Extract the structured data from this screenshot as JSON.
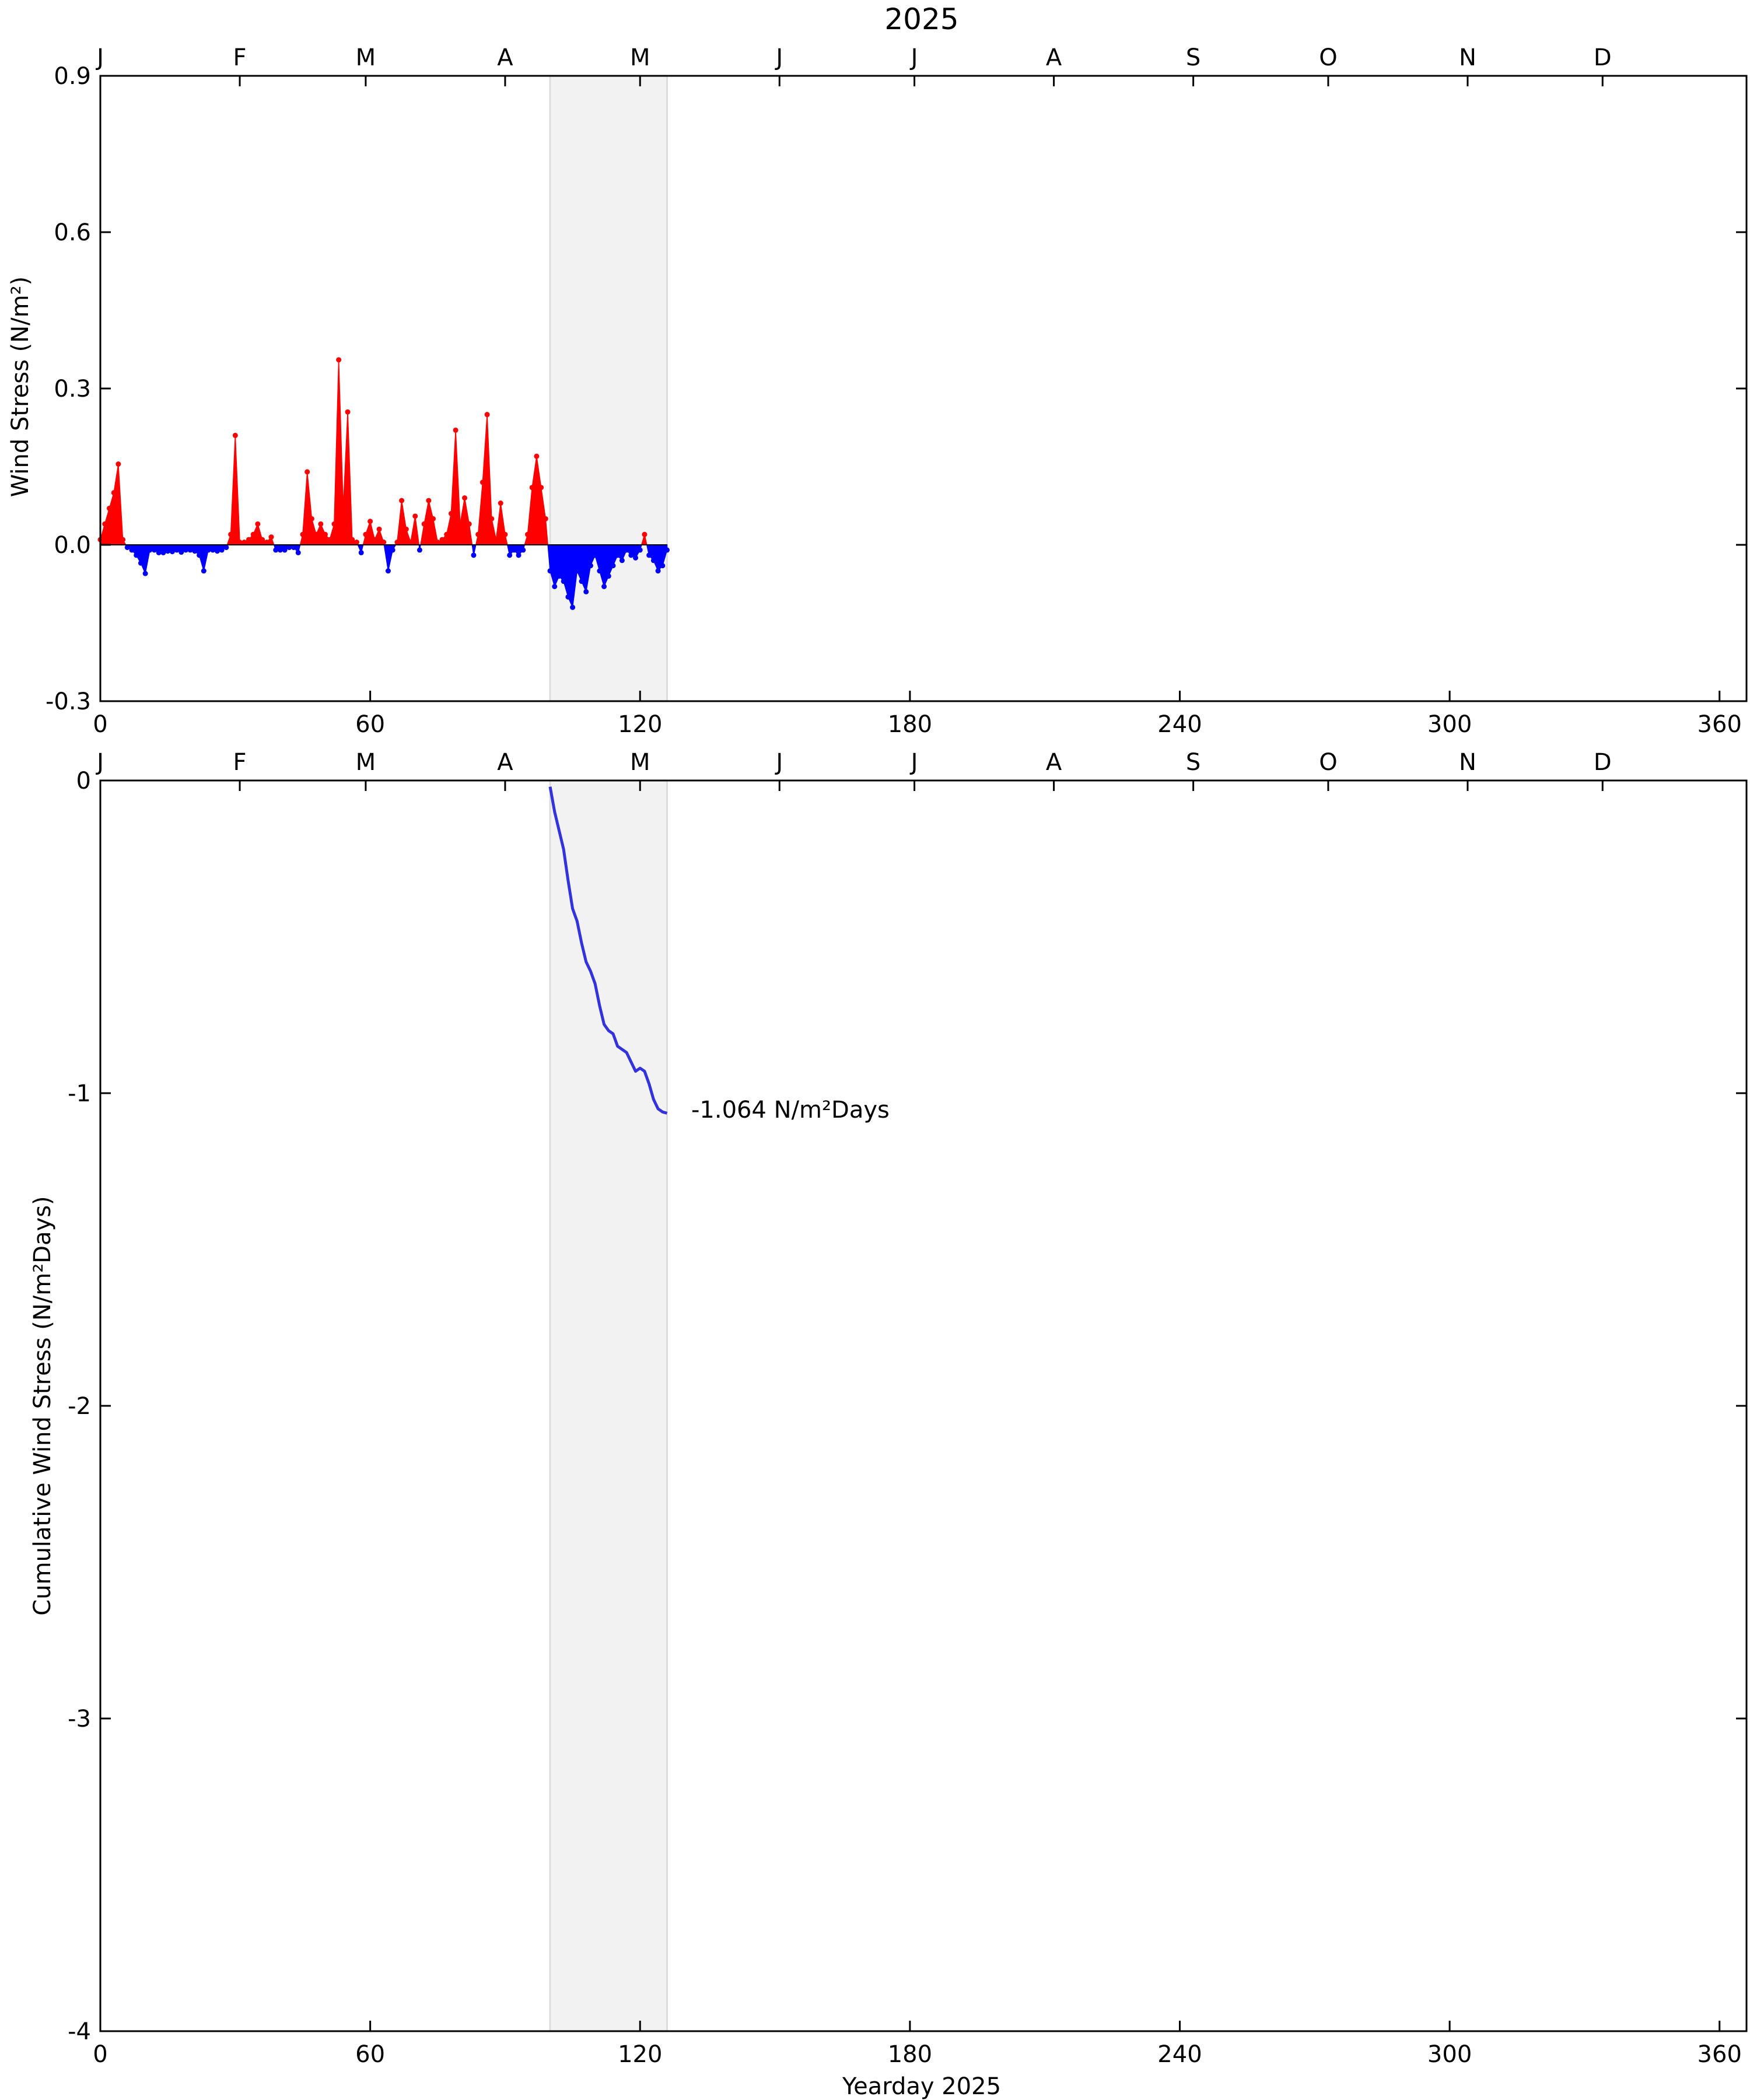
{
  "title": "2025",
  "chart_data": [
    {
      "type": "area",
      "panel": "top",
      "ylabel": "Wind Stress (N/m²)",
      "xlabel": "",
      "xlim": [
        0,
        366
      ],
      "ylim": [
        -0.3,
        0.9
      ],
      "xticks": [
        0,
        60,
        120,
        180,
        240,
        300,
        360
      ],
      "xtick_labels": [
        "0",
        "60",
        "120",
        "180",
        "240",
        "300",
        "360"
      ],
      "yticks": [
        -0.3,
        0.0,
        0.3,
        0.6,
        0.9
      ],
      "ytick_labels": [
        "-0.3",
        "0.0",
        "0.3",
        "0.6",
        "0.9"
      ],
      "months": [
        "J",
        "F",
        "M",
        "A",
        "M",
        "J",
        "J",
        "A",
        "S",
        "O",
        "N",
        "D"
      ],
      "month_days": [
        0,
        31,
        59,
        90,
        120,
        151,
        181,
        212,
        243,
        273,
        304,
        334
      ],
      "highlight_range": [
        100,
        126
      ],
      "positive_color": "#ff0000",
      "negative_color": "#0000ff",
      "highlight_color": "#f2f2f2",
      "grid": false,
      "series": [
        {
          "x": [
            0,
            1,
            2,
            3,
            4,
            5,
            6,
            7,
            8,
            9,
            10,
            11,
            12,
            13,
            14,
            15,
            16,
            17,
            18,
            19,
            20,
            21,
            22,
            23,
            24,
            25,
            26,
            27,
            28,
            29,
            30,
            31,
            32,
            33,
            34,
            35,
            36,
            37,
            38,
            39,
            40,
            41,
            42,
            43,
            44,
            45,
            46,
            47,
            48,
            49,
            50,
            51,
            52,
            53,
            54,
            55,
            56,
            57,
            58,
            59,
            60,
            61,
            62,
            63,
            64,
            65,
            66,
            67,
            68,
            69,
            70,
            71,
            72,
            73,
            74,
            75,
            76,
            77,
            78,
            79,
            80,
            81,
            82,
            83,
            84,
            85,
            86,
            87,
            88,
            89,
            90,
            91,
            92,
            93,
            94,
            95,
            96,
            97,
            98,
            99,
            100,
            101,
            102,
            103,
            104,
            105,
            106,
            107,
            108,
            109,
            110,
            111,
            112,
            113,
            114,
            115,
            116,
            117,
            118,
            119,
            120,
            121,
            122,
            123,
            124,
            125,
            126
          ],
          "values": [
            0.01,
            0.04,
            0.07,
            0.1,
            0.155,
            0.01,
            -0.005,
            -0.01,
            -0.02,
            -0.035,
            -0.055,
            -0.01,
            -0.01,
            -0.015,
            -0.015,
            -0.012,
            -0.013,
            -0.01,
            -0.014,
            -0.01,
            -0.01,
            -0.012,
            -0.02,
            -0.05,
            -0.01,
            -0.01,
            -0.012,
            -0.01,
            -0.005,
            0.02,
            0.21,
            0.005,
            0.005,
            0.01,
            0.02,
            0.04,
            0.01,
            0.005,
            0.015,
            -0.01,
            -0.01,
            -0.01,
            -0.005,
            -0.005,
            -0.015,
            0.02,
            0.14,
            0.05,
            0.02,
            0.04,
            0.02,
            0.01,
            0.04,
            0.355,
            0.07,
            0.255,
            0.01,
            0.005,
            -0.015,
            0.02,
            0.045,
            0.01,
            0.03,
            0.005,
            -0.05,
            -0.01,
            0.005,
            0.085,
            0.03,
            0.005,
            0.055,
            -0.01,
            0.04,
            0.085,
            0.05,
            0.005,
            0.01,
            0.02,
            0.06,
            0.22,
            0.04,
            0.09,
            0.04,
            -0.02,
            0.02,
            0.12,
            0.25,
            0.05,
            0.01,
            0.08,
            0.02,
            -0.02,
            -0.01,
            -0.02,
            -0.01,
            0.02,
            0.11,
            0.17,
            0.11,
            0.05,
            -0.05,
            -0.08,
            -0.06,
            -0.07,
            -0.1,
            -0.12,
            -0.05,
            -0.07,
            -0.09,
            -0.04,
            -0.02,
            -0.05,
            -0.08,
            -0.06,
            -0.04,
            -0.02,
            -0.03,
            -0.01,
            -0.02,
            -0.025,
            -0.01,
            0.02,
            -0.02,
            -0.03,
            -0.05,
            -0.04,
            -0.01
          ]
        }
      ]
    },
    {
      "type": "line",
      "panel": "bottom",
      "ylabel": "Cumulative Wind Stress (N/m²Days)",
      "xlabel": "Yearday 2025",
      "xlim": [
        0,
        366
      ],
      "ylim": [
        -4,
        0
      ],
      "xticks": [
        0,
        60,
        120,
        180,
        240,
        300,
        360
      ],
      "xtick_labels": [
        "0",
        "60",
        "120",
        "180",
        "240",
        "300",
        "360"
      ],
      "yticks": [
        -4,
        -3,
        -2,
        -1,
        0
      ],
      "ytick_labels": [
        "-4",
        "-3",
        "-2",
        "-1",
        "0"
      ],
      "months": [
        "J",
        "F",
        "M",
        "A",
        "M",
        "J",
        "J",
        "A",
        "S",
        "O",
        "N",
        "D"
      ],
      "month_days": [
        0,
        31,
        59,
        90,
        120,
        151,
        181,
        212,
        243,
        273,
        304,
        334
      ],
      "highlight_range": [
        100,
        126
      ],
      "line_color": "#3333dd",
      "highlight_color": "#f2f2f2",
      "grid": false,
      "annotation": "-1.064 N/m²Days",
      "series": [
        {
          "x": [
            100,
            101,
            102,
            103,
            104,
            105,
            106,
            107,
            108,
            109,
            110,
            111,
            112,
            113,
            114,
            115,
            116,
            117,
            118,
            119,
            120,
            121,
            122,
            123,
            124,
            125,
            126
          ],
          "values": [
            -0.02,
            -0.1,
            -0.16,
            -0.22,
            -0.32,
            -0.41,
            -0.45,
            -0.52,
            -0.58,
            -0.61,
            -0.65,
            -0.72,
            -0.78,
            -0.8,
            -0.81,
            -0.85,
            -0.86,
            -0.87,
            -0.9,
            -0.93,
            -0.92,
            -0.93,
            -0.97,
            -1.02,
            -1.05,
            -1.06,
            -1.064
          ]
        }
      ]
    }
  ]
}
